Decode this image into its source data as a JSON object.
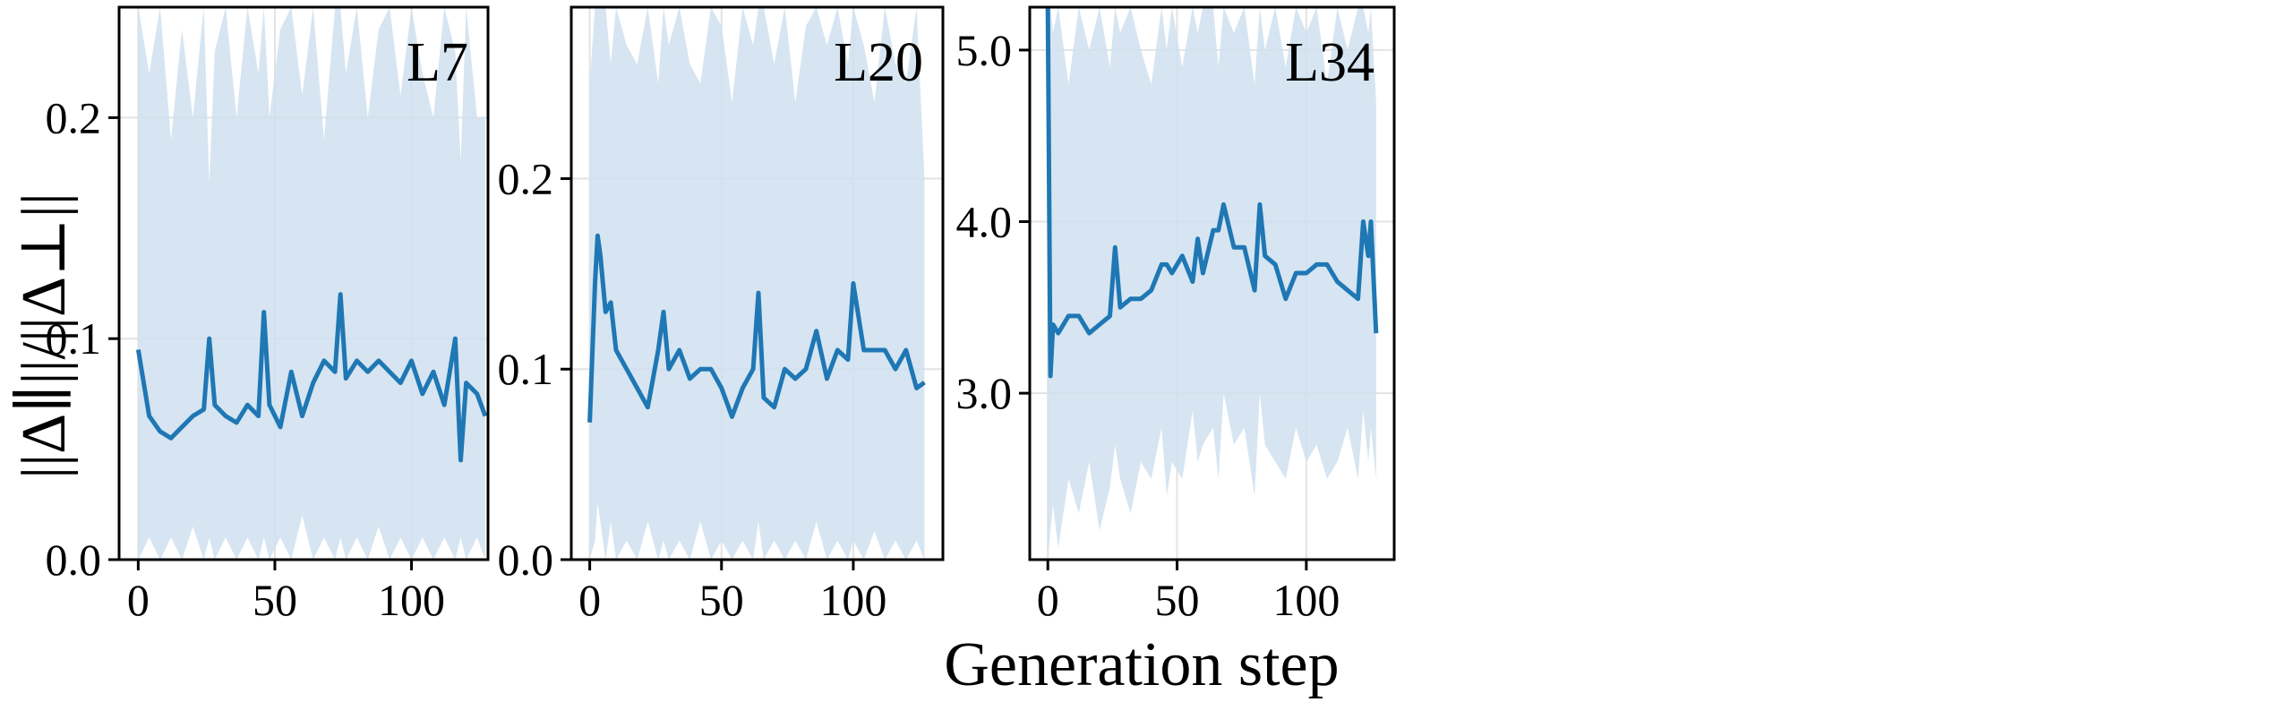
{
  "figure": {
    "ylabel": "||Δ∥||/||Δ⊥||",
    "xlabel": "Generation step"
  },
  "colors": {
    "line": "#1f77b4",
    "band": "#cfe1ef",
    "grid": "#e3e3e3",
    "frame": "#000000"
  },
  "chart_data": [
    {
      "type": "line",
      "panel_label": "L7",
      "xlim": [
        -7,
        128
      ],
      "ylim": [
        0,
        0.25
      ],
      "xticks": [
        0,
        50,
        100
      ],
      "yticks": [
        0.0,
        0.1,
        0.2
      ],
      "ytick_labels": [
        "0.0",
        "0.1",
        "0.2"
      ],
      "grid": true,
      "series": [
        {
          "x": [
            0,
            4,
            8,
            12,
            16,
            20,
            24,
            26,
            28,
            32,
            36,
            40,
            44,
            46,
            48,
            52,
            56,
            60,
            64,
            68,
            72,
            74,
            76,
            80,
            84,
            88,
            92,
            96,
            100,
            104,
            108,
            112,
            116,
            118,
            120,
            124,
            127
          ],
          "y": [
            0.095,
            0.065,
            0.058,
            0.055,
            0.06,
            0.065,
            0.068,
            0.1,
            0.07,
            0.065,
            0.062,
            0.07,
            0.065,
            0.112,
            0.07,
            0.06,
            0.085,
            0.065,
            0.08,
            0.09,
            0.085,
            0.12,
            0.082,
            0.09,
            0.085,
            0.09,
            0.085,
            0.08,
            0.09,
            0.075,
            0.085,
            0.07,
            0.1,
            0.045,
            0.08,
            0.075,
            0.065
          ],
          "band_upper": [
            0.25,
            0.22,
            0.25,
            0.19,
            0.24,
            0.2,
            0.25,
            0.17,
            0.23,
            0.25,
            0.2,
            0.25,
            0.22,
            0.25,
            0.2,
            0.24,
            0.25,
            0.21,
            0.25,
            0.19,
            0.25,
            0.25,
            0.22,
            0.25,
            0.2,
            0.24,
            0.25,
            0.21,
            0.25,
            0.22,
            0.2,
            0.25,
            0.23,
            0.18,
            0.25,
            0.2,
            0.2
          ],
          "band_lower": [
            0.0,
            0.01,
            0.0,
            0.01,
            0.0,
            0.015,
            0.0,
            0.01,
            0.0,
            0.01,
            0.0,
            0.01,
            0.0,
            0.01,
            0.0,
            0.01,
            0.0,
            0.02,
            0.0,
            0.01,
            0.0,
            0.01,
            0.0,
            0.01,
            0.0,
            0.015,
            0.0,
            0.01,
            0.0,
            0.01,
            0.0,
            0.01,
            0.0,
            0.01,
            0.0,
            0.01,
            0.0
          ]
        }
      ]
    },
    {
      "type": "line",
      "panel_label": "L20",
      "xlim": [
        -7,
        134
      ],
      "ylim": [
        0,
        0.29
      ],
      "xticks": [
        0,
        50,
        100
      ],
      "yticks": [
        0.0,
        0.1,
        0.2
      ],
      "ytick_labels": [
        "0.0",
        "0.1",
        "0.2"
      ],
      "grid": true,
      "series": [
        {
          "x": [
            0,
            2,
            3,
            4,
            6,
            8,
            10,
            14,
            18,
            22,
            26,
            28,
            30,
            34,
            38,
            42,
            46,
            50,
            54,
            58,
            62,
            64,
            66,
            70,
            74,
            78,
            82,
            86,
            90,
            94,
            98,
            100,
            104,
            108,
            112,
            116,
            120,
            124,
            127
          ],
          "y": [
            0.072,
            0.145,
            0.17,
            0.16,
            0.13,
            0.135,
            0.11,
            0.1,
            0.09,
            0.08,
            0.11,
            0.13,
            0.1,
            0.11,
            0.095,
            0.1,
            0.1,
            0.09,
            0.075,
            0.09,
            0.1,
            0.14,
            0.085,
            0.08,
            0.1,
            0.095,
            0.1,
            0.12,
            0.095,
            0.11,
            0.105,
            0.145,
            0.11,
            0.11,
            0.11,
            0.1,
            0.11,
            0.09,
            0.093
          ],
          "band_upper": [
            0.25,
            0.29,
            0.29,
            0.29,
            0.29,
            0.26,
            0.29,
            0.27,
            0.26,
            0.29,
            0.25,
            0.29,
            0.27,
            0.29,
            0.26,
            0.25,
            0.29,
            0.28,
            0.24,
            0.29,
            0.27,
            0.29,
            0.29,
            0.26,
            0.29,
            0.24,
            0.28,
            0.29,
            0.27,
            0.29,
            0.26,
            0.29,
            0.27,
            0.24,
            0.29,
            0.26,
            0.25,
            0.29,
            0.2
          ],
          "band_lower": [
            0.0,
            0.01,
            0.03,
            0.02,
            0.0,
            0.02,
            0.0,
            0.01,
            0.0,
            0.02,
            0.0,
            0.01,
            0.0,
            0.01,
            0.0,
            0.02,
            0.0,
            0.01,
            0.0,
            0.01,
            0.0,
            0.02,
            0.0,
            0.01,
            0.0,
            0.01,
            0.0,
            0.02,
            0.0,
            0.01,
            0.0,
            0.01,
            0.0,
            0.015,
            0.0,
            0.01,
            0.0,
            0.01,
            0.0
          ]
        }
      ]
    },
    {
      "type": "line",
      "panel_label": "L34",
      "xlim": [
        -7,
        134
      ],
      "ylim": [
        2.03,
        5.25
      ],
      "xticks": [
        0,
        50,
        100
      ],
      "yticks": [
        3.0,
        4.0,
        5.0
      ],
      "ytick_labels": [
        "3.0",
        "4.0",
        "5.0"
      ],
      "grid": true,
      "series": [
        {
          "x": [
            0,
            1,
            2,
            4,
            8,
            12,
            16,
            20,
            24,
            26,
            28,
            32,
            36,
            40,
            44,
            46,
            48,
            52,
            56,
            58,
            60,
            64,
            66,
            68,
            72,
            76,
            80,
            82,
            84,
            88,
            92,
            96,
            100,
            104,
            108,
            112,
            116,
            120,
            122,
            124,
            125,
            127
          ],
          "y": [
            5.25,
            3.1,
            3.4,
            3.35,
            3.45,
            3.45,
            3.35,
            3.4,
            3.45,
            3.85,
            3.5,
            3.55,
            3.55,
            3.6,
            3.75,
            3.75,
            3.7,
            3.8,
            3.65,
            3.9,
            3.7,
            3.95,
            3.95,
            4.1,
            3.85,
            3.85,
            3.6,
            4.1,
            3.8,
            3.75,
            3.55,
            3.7,
            3.7,
            3.75,
            3.75,
            3.65,
            3.6,
            3.55,
            4.0,
            3.8,
            4.0,
            3.35
          ],
          "band_upper": [
            5.25,
            5.25,
            5.1,
            5.25,
            4.8,
            5.25,
            5.0,
            5.25,
            4.9,
            5.25,
            5.1,
            5.25,
            5.0,
            4.8,
            5.25,
            5.0,
            5.25,
            4.9,
            5.25,
            5.1,
            5.25,
            5.25,
            4.9,
            5.25,
            5.1,
            5.25,
            4.8,
            5.25,
            5.0,
            5.25,
            4.9,
            5.25,
            5.1,
            5.25,
            4.8,
            5.25,
            5.0,
            5.25,
            5.25,
            5.1,
            5.25,
            4.7
          ],
          "band_lower": [
            2.03,
            2.2,
            2.35,
            2.1,
            2.5,
            2.3,
            2.6,
            2.2,
            2.45,
            2.7,
            2.5,
            2.3,
            2.6,
            2.5,
            2.8,
            2.4,
            2.6,
            2.5,
            2.9,
            2.6,
            2.7,
            2.8,
            2.5,
            3.0,
            2.7,
            2.8,
            2.4,
            3.0,
            2.7,
            2.6,
            2.5,
            2.8,
            2.6,
            2.7,
            2.5,
            2.6,
            2.8,
            2.5,
            2.9,
            2.6,
            2.8,
            2.5
          ]
        }
      ]
    }
  ]
}
